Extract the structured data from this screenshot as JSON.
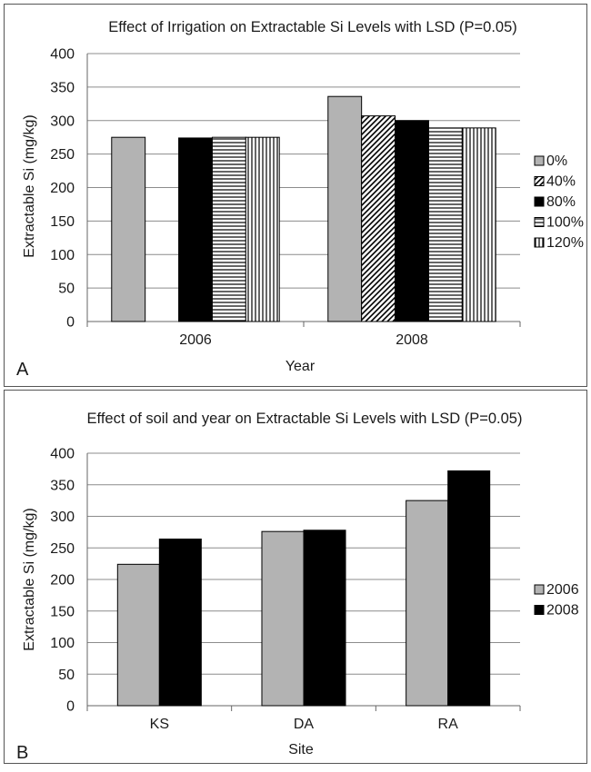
{
  "chart_data": [
    {
      "type": "bar",
      "panel_label": "A",
      "title": "Effect of Irrigation on Extractable Si Levels with LSD (P=0.05)",
      "xlabel": "Year",
      "ylabel": "Extractable Si (mg/kg)",
      "ylim": [
        0,
        400
      ],
      "yticks": [
        "0",
        "50",
        "100",
        "150",
        "200",
        "250",
        "300",
        "350",
        "400"
      ],
      "grid": true,
      "legend_position": "right",
      "categories": [
        "2006",
        "2008"
      ],
      "series": [
        {
          "name": "0%",
          "values": [
            275,
            336
          ],
          "pattern": "solid-gray",
          "color": "#b3b3b3"
        },
        {
          "name": "40%",
          "values": [
            null,
            307
          ],
          "pattern": "diagonal",
          "color": "#000000"
        },
        {
          "name": "80%",
          "values": [
            274,
            300
          ],
          "pattern": "solid-black",
          "color": "#000000"
        },
        {
          "name": "100%",
          "values": [
            275,
            289
          ],
          "pattern": "horizontal",
          "color": "#000000"
        },
        {
          "name": "120%",
          "values": [
            275,
            289
          ],
          "pattern": "vertical",
          "color": "#000000"
        }
      ]
    },
    {
      "type": "bar",
      "panel_label": "B",
      "title": "Effect of soil and year on Extractable Si Levels with LSD (P=0.05)",
      "xlabel": "Site",
      "ylabel": "Extractable Si (mg/kg)",
      "ylim": [
        0,
        400
      ],
      "yticks": [
        "0",
        "50",
        "100",
        "150",
        "200",
        "250",
        "300",
        "350",
        "400"
      ],
      "grid": true,
      "legend_position": "right",
      "categories": [
        "KS",
        "DA",
        "RA"
      ],
      "series": [
        {
          "name": "2006",
          "values": [
            224,
            276,
            325
          ],
          "pattern": "solid-gray",
          "color": "#b3b3b3"
        },
        {
          "name": "2008",
          "values": [
            264,
            278,
            372
          ],
          "pattern": "solid-black",
          "color": "#000000"
        }
      ]
    }
  ]
}
